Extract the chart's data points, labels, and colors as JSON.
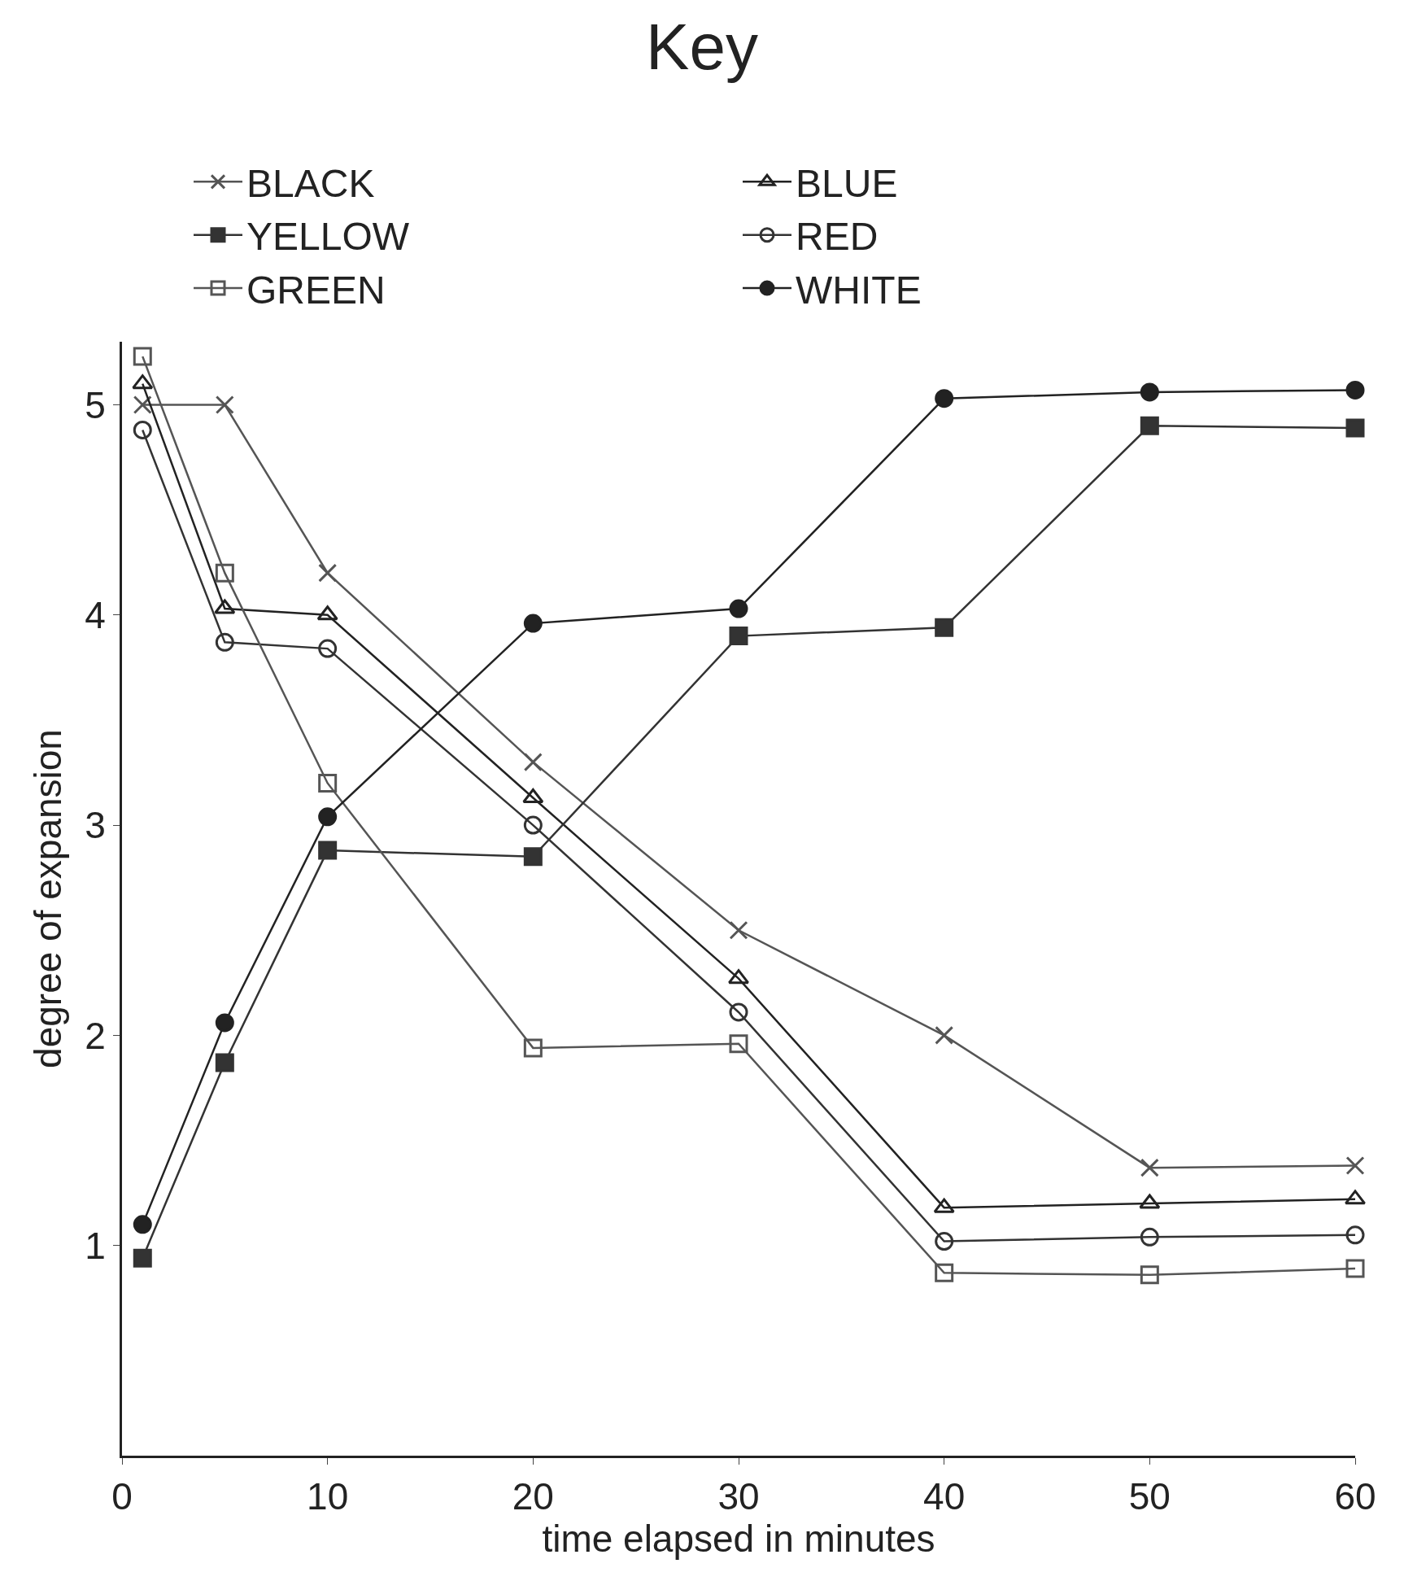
{
  "chart_data": {
    "type": "line",
    "title": "Key",
    "xlabel": "time elapsed in minutes",
    "ylabel": "degree of expansion",
    "x": [
      1,
      5,
      10,
      20,
      30,
      40,
      50,
      60
    ],
    "xlim": [
      0,
      60
    ],
    "xticks": [
      0,
      10,
      20,
      30,
      40,
      50,
      60
    ],
    "ylim": [
      0,
      5.3
    ],
    "yticks": [
      1,
      2,
      3,
      4,
      5
    ],
    "grid": false,
    "legend": "top",
    "line_style": "solid",
    "series": [
      {
        "name": "BLACK",
        "color": "#555555",
        "marker": "cross",
        "values": [
          5.0,
          5.0,
          4.2,
          3.3,
          2.5,
          2.0,
          1.37,
          1.38
        ]
      },
      {
        "name": "BLUE",
        "color": "#222222",
        "marker": "triangle-open",
        "values": [
          5.1,
          4.03,
          4.0,
          3.13,
          2.27,
          1.18,
          1.2,
          1.22
        ]
      },
      {
        "name": "YELLOW",
        "color": "#333333",
        "marker": "square",
        "values": [
          0.94,
          1.87,
          2.88,
          2.85,
          3.9,
          3.94,
          4.9,
          4.89
        ]
      },
      {
        "name": "RED",
        "color": "#333333",
        "marker": "circle-open",
        "values": [
          4.88,
          3.87,
          3.84,
          3.0,
          2.11,
          1.02,
          1.04,
          1.05
        ]
      },
      {
        "name": "GREEN",
        "color": "#555555",
        "marker": "square-open",
        "values": [
          5.23,
          4.2,
          3.2,
          1.94,
          1.96,
          0.87,
          0.86,
          0.89
        ]
      },
      {
        "name": "WHITE",
        "color": "#222222",
        "marker": "circle",
        "values": [
          1.1,
          2.06,
          3.04,
          3.96,
          4.03,
          5.03,
          5.06,
          5.07
        ]
      }
    ]
  }
}
